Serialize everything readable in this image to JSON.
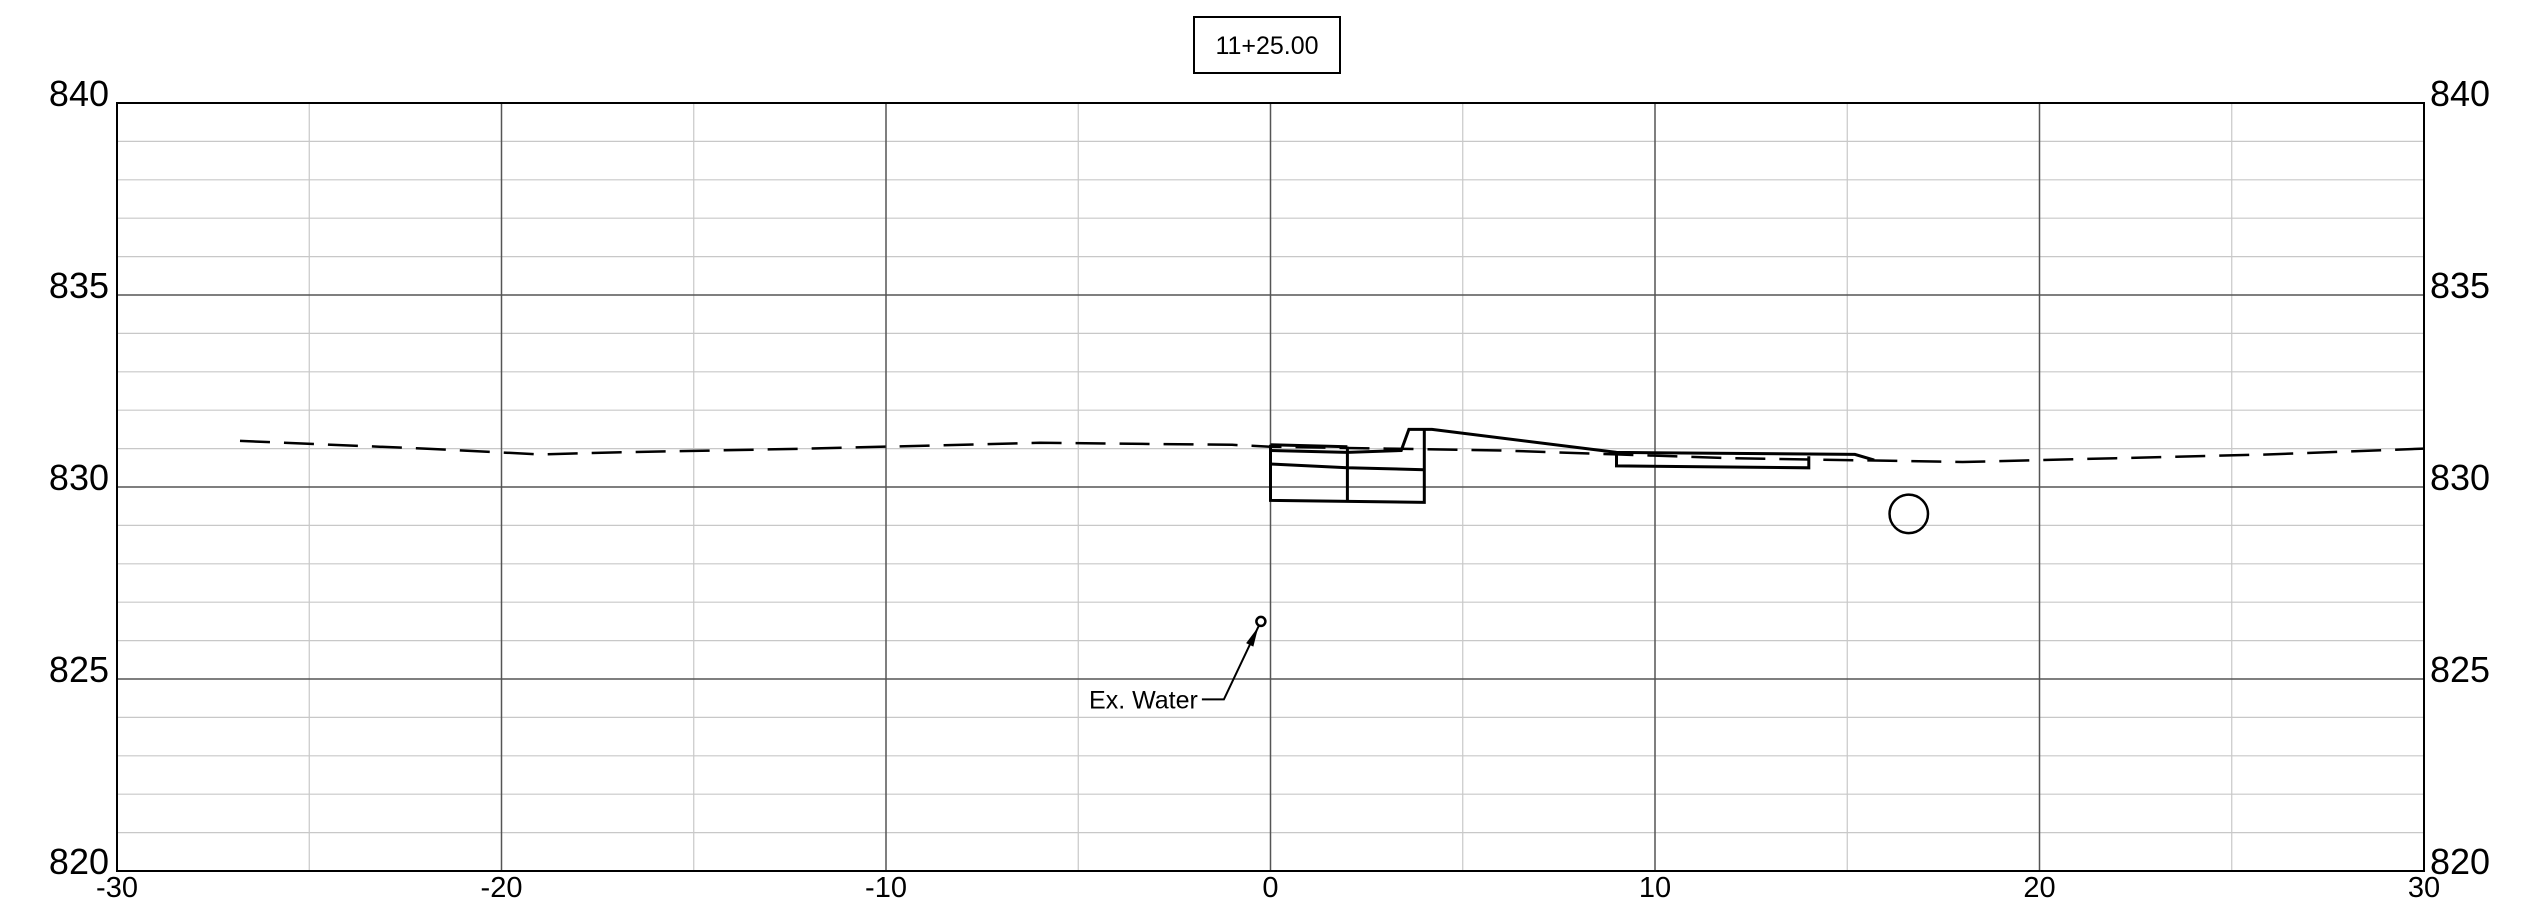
{
  "station_label": "11+25.00",
  "chart_data": {
    "type": "cross-section",
    "xlim": [
      -30,
      30
    ],
    "ylim": [
      820,
      840
    ],
    "x_ticks": [
      -30,
      -20,
      -10,
      0,
      10,
      20,
      30
    ],
    "x_tick_labels": [
      "-30",
      "-20",
      "-10",
      "0",
      "10",
      "20",
      "30"
    ],
    "y_ticks": [
      820,
      825,
      830,
      835,
      840
    ],
    "y_tick_labels": [
      "820",
      "825",
      "830",
      "835",
      "840"
    ],
    "minor_x_step": 5,
    "minor_y_step": 1,
    "grid": true,
    "existing_ground": [
      [
        -26.8,
        831.2
      ],
      [
        -22,
        831.0
      ],
      [
        -19,
        830.85
      ],
      [
        -17,
        830.9
      ],
      [
        -12,
        831.0
      ],
      [
        -6,
        831.15
      ],
      [
        -1,
        831.1
      ],
      [
        0,
        831.05
      ],
      [
        3,
        831.0
      ],
      [
        6,
        830.95
      ],
      [
        9,
        830.85
      ],
      [
        12,
        830.75
      ],
      [
        15,
        830.7
      ],
      [
        18,
        830.65
      ],
      [
        22,
        830.75
      ],
      [
        26,
        830.85
      ],
      [
        30,
        831.0
      ]
    ],
    "proposed_structure": [
      [
        [
          0,
          830.95
        ],
        [
          2,
          830.9
        ],
        [
          3.4,
          830.95
        ],
        [
          3.6,
          831.5
        ],
        [
          4.2,
          831.5
        ],
        [
          9,
          830.9
        ],
        [
          15.2,
          830.85
        ],
        [
          15.7,
          830.7
        ]
      ],
      [
        [
          0,
          831.1
        ],
        [
          2,
          831.05
        ]
      ],
      [
        [
          0,
          830.6
        ],
        [
          2,
          830.5
        ],
        [
          4,
          830.45
        ]
      ],
      [
        [
          0,
          831.1
        ],
        [
          0,
          829.65
        ],
        [
          4,
          829.6
        ],
        [
          4,
          831.5
        ]
      ],
      [
        [
          2,
          831.05
        ],
        [
          2,
          829.62
        ]
      ],
      [
        [
          9,
          830.9
        ],
        [
          9,
          830.55
        ],
        [
          14,
          830.5
        ],
        [
          14,
          830.8
        ]
      ]
    ],
    "pipe": {
      "x": 16.6,
      "y": 829.3,
      "diameter": 1.0
    },
    "annotations": [
      {
        "text": "Ex. Water",
        "x": -0.25,
        "y": 826.5
      }
    ]
  }
}
